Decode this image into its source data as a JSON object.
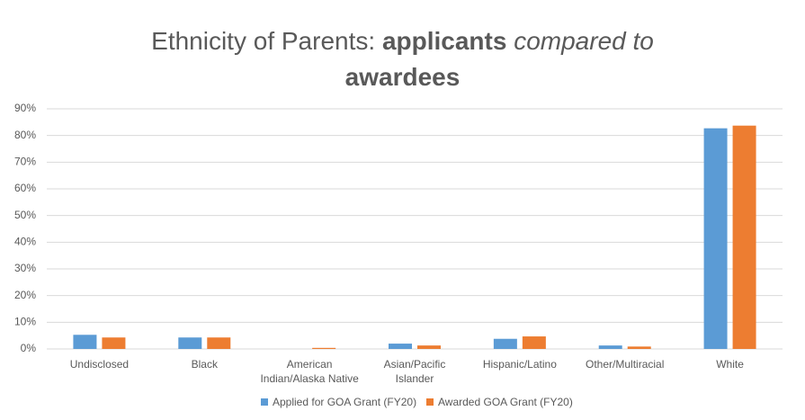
{
  "chart_data": {
    "type": "bar",
    "title": [
      "Ethnicity of Parents:",
      "applicants",
      "compared to",
      "awardees"
    ],
    "categories": [
      "Undisclosed",
      "Black",
      "American Indian/Alaska Native",
      "Asian/Pacific Islander",
      "Hispanic/Latino",
      "Other/Multiracial",
      "White"
    ],
    "series": [
      {
        "name": "Applied for GOA Grant (FY20)",
        "color": "#5b9bd5",
        "values": [
          5.3,
          4.3,
          0,
          2.0,
          3.8,
          1.3,
          82.7
        ]
      },
      {
        "name": "Awarded GOA Grant (FY20)",
        "color": "#ed7d31",
        "values": [
          4.3,
          4.3,
          0.4,
          1.3,
          4.7,
          0.9,
          83.7
        ]
      }
    ],
    "ylim": [
      0,
      90
    ],
    "yticks": [
      {
        "value": 0,
        "label": "0%"
      },
      {
        "value": 10,
        "label": "10%"
      },
      {
        "value": 20,
        "label": "20%"
      },
      {
        "value": 30,
        "label": "30%"
      },
      {
        "value": 40,
        "label": "40%"
      },
      {
        "value": 50,
        "label": "50%"
      },
      {
        "value": 60,
        "label": "60%"
      },
      {
        "value": 70,
        "label": "70%"
      },
      {
        "value": 80,
        "label": "80%"
      },
      {
        "value": 90,
        "label": "90%"
      }
    ],
    "grid": true,
    "legend": "bottom"
  }
}
